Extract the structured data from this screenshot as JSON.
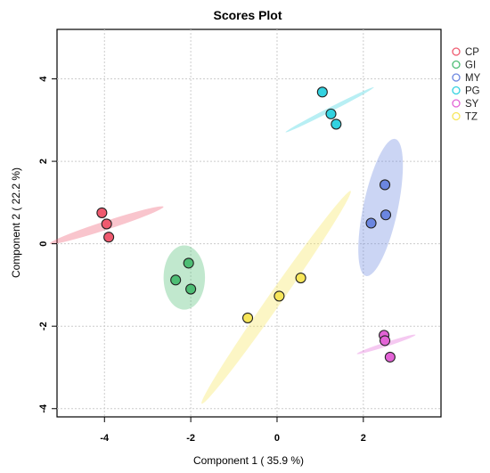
{
  "chart_data": {
    "type": "scatter",
    "title": "Scores Plot",
    "xlabel": "Component 1 ( 35.9 %)",
    "ylabel": "Component 2 ( 22.2 %)",
    "xlim": [
      -5.1,
      3.8
    ],
    "ylim": [
      -4.2,
      5.2
    ],
    "xticks": [
      -4,
      -2,
      0,
      2
    ],
    "yticks": [
      -4,
      -2,
      0,
      2,
      4
    ],
    "grid": true,
    "legend_position": "top-right",
    "series": [
      {
        "name": "CP",
        "color": "#ef5a6f",
        "points": [
          [
            -4.06,
            0.75
          ],
          [
            -3.95,
            0.48
          ],
          [
            -3.9,
            0.16
          ]
        ],
        "ellipse": {
          "cx": -3.95,
          "cy": 0.45,
          "rx": 0.1,
          "ry": 1.45,
          "angle": 72
        }
      },
      {
        "name": "GI",
        "color": "#4dbd74",
        "points": [
          [
            -2.05,
            -0.47
          ],
          [
            -2.35,
            -0.88
          ],
          [
            -2.0,
            -1.1
          ]
        ],
        "ellipse": {
          "cx": -2.15,
          "cy": -0.82,
          "rx": 0.48,
          "ry": 0.78,
          "angle": 0
        }
      },
      {
        "name": "MY",
        "color": "#6b86e0",
        "points": [
          [
            2.5,
            1.43
          ],
          [
            2.18,
            0.5
          ],
          [
            2.52,
            0.7
          ]
        ],
        "ellipse": {
          "cx": 2.4,
          "cy": 0.88,
          "rx": 0.4,
          "ry": 1.7,
          "angle": 12
        }
      },
      {
        "name": "PG",
        "color": "#33d2e0",
        "points": [
          [
            1.05,
            3.68
          ],
          [
            1.25,
            3.15
          ],
          [
            1.37,
            2.9
          ]
        ],
        "ellipse": {
          "cx": 1.22,
          "cy": 3.25,
          "rx": 0.05,
          "ry": 1.2,
          "angle": 63
        }
      },
      {
        "name": "SY",
        "color": "#e363d6",
        "points": [
          [
            2.48,
            -2.22
          ],
          [
            2.5,
            -2.35
          ],
          [
            2.62,
            -2.75
          ]
        ],
        "ellipse": {
          "cx": 2.53,
          "cy": -2.44,
          "rx": 0.05,
          "ry": 0.75,
          "angle": 72
        }
      },
      {
        "name": "TZ",
        "color": "#f7e65a",
        "points": [
          [
            -0.68,
            -1.8
          ],
          [
            0.05,
            -1.27
          ],
          [
            0.55,
            -0.83
          ]
        ],
        "ellipse": {
          "cx": -0.02,
          "cy": -1.3,
          "rx": 0.16,
          "ry": 3.15,
          "angle": 35
        }
      }
    ]
  }
}
